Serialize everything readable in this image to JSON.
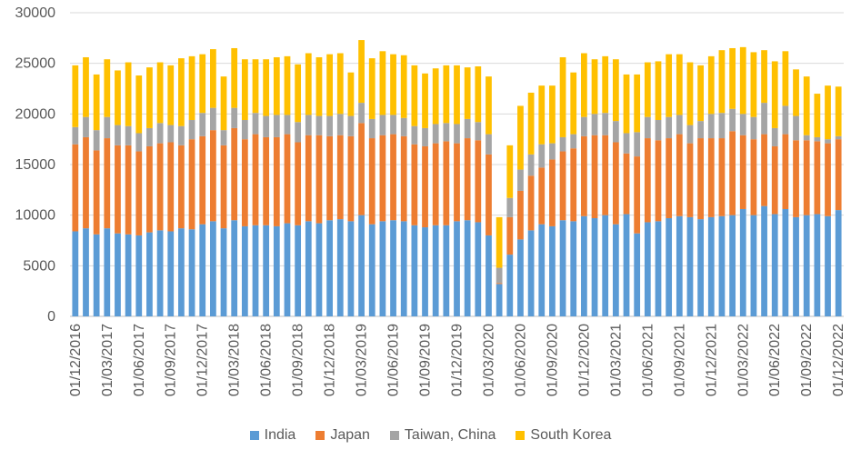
{
  "chart_data": {
    "type": "bar",
    "stacked": true,
    "title": "",
    "xlabel": "",
    "ylabel": "",
    "ylim": [
      0,
      30000
    ],
    "yticks": [
      0,
      5000,
      10000,
      15000,
      20000,
      25000,
      30000
    ],
    "grid": true,
    "legend_position": "bottom",
    "categories": [
      "01/12/2016",
      "01/01/2017",
      "01/02/2017",
      "01/03/2017",
      "01/04/2017",
      "01/05/2017",
      "01/06/2017",
      "01/07/2017",
      "01/08/2017",
      "01/09/2017",
      "01/10/2017",
      "01/11/2017",
      "01/12/2017",
      "01/01/2018",
      "01/02/2018",
      "01/03/2018",
      "01/04/2018",
      "01/05/2018",
      "01/06/2018",
      "01/07/2018",
      "01/08/2018",
      "01/09/2018",
      "01/10/2018",
      "01/11/2018",
      "01/12/2018",
      "01/01/2019",
      "01/02/2019",
      "01/03/2019",
      "01/04/2019",
      "01/05/2019",
      "01/06/2019",
      "01/07/2019",
      "01/08/2019",
      "01/09/2019",
      "01/10/2019",
      "01/11/2019",
      "01/12/2019",
      "01/01/2020",
      "01/02/2020",
      "01/03/2020",
      "01/04/2020",
      "01/05/2020",
      "01/06/2020",
      "01/07/2020",
      "01/08/2020",
      "01/09/2020",
      "01/10/2020",
      "01/11/2020",
      "01/12/2020",
      "01/01/2021",
      "01/02/2021",
      "01/03/2021",
      "01/04/2021",
      "01/05/2021",
      "01/06/2021",
      "01/07/2021",
      "01/08/2021",
      "01/09/2021",
      "01/10/2021",
      "01/11/2021",
      "01/12/2021",
      "01/01/2022",
      "01/02/2022",
      "01/03/2022",
      "01/04/2022",
      "01/05/2022",
      "01/06/2022",
      "01/07/2022",
      "01/08/2022",
      "01/09/2022",
      "01/10/2022",
      "01/11/2022",
      "01/12/2022"
    ],
    "tick_labels": [
      "01/12/2016",
      "01/03/2017",
      "01/06/2017",
      "01/09/2017",
      "01/12/2017",
      "01/03/2018",
      "01/06/2018",
      "01/09/2018",
      "01/12/2018",
      "01/03/2019",
      "01/06/2019",
      "01/09/2019",
      "01/12/2019",
      "01/03/2020",
      "01/06/2020",
      "01/09/2020",
      "01/12/2020",
      "01/03/2021",
      "01/06/2021",
      "01/09/2021",
      "01/12/2021",
      "01/03/2022",
      "01/06/2022",
      "01/09/2022",
      "01/12/2022"
    ],
    "series": [
      {
        "name": "India",
        "color": "#5B9BD5",
        "values": [
          8400,
          8700,
          8100,
          8700,
          8200,
          8100,
          8000,
          8300,
          8500,
          8400,
          8700,
          8600,
          9100,
          9400,
          8700,
          9500,
          8900,
          9000,
          9000,
          8900,
          9200,
          9000,
          9400,
          9200,
          9500,
          9600,
          9400,
          10000,
          9100,
          9400,
          9500,
          9400,
          9000,
          8800,
          9000,
          9000,
          9400,
          9500,
          9300,
          8000,
          3200,
          6100,
          7600,
          8500,
          9100,
          8900,
          9500,
          9400,
          9900,
          9700,
          10000,
          9100,
          10100,
          8200,
          9300,
          9400,
          9700,
          9900,
          9800,
          9600,
          9800,
          9900,
          10000,
          10600,
          10000,
          10900,
          10100,
          10600,
          9800,
          10000,
          10100,
          9900,
          10500
        ]
      },
      {
        "name": "Japan",
        "color": "#ED7D31",
        "values": [
          8600,
          9000,
          8300,
          8900,
          8700,
          8800,
          8300,
          8500,
          8600,
          8800,
          8200,
          8900,
          8700,
          9000,
          8200,
          9100,
          8600,
          9000,
          8700,
          8800,
          8800,
          8200,
          8500,
          8700,
          8300,
          8300,
          8400,
          9100,
          8500,
          8500,
          8500,
          8400,
          8000,
          8000,
          8100,
          8300,
          7700,
          8100,
          8100,
          8000,
          100,
          3700,
          4800,
          5400,
          5600,
          6600,
          6800,
          7200,
          7900,
          8200,
          7900,
          8100,
          6000,
          7600,
          8300,
          8000,
          7900,
          8100,
          7300,
          8000,
          7800,
          7700,
          8300,
          7300,
          7500,
          7100,
          6700,
          7400,
          7600,
          7400,
          7200,
          7200,
          7000
        ]
      },
      {
        "name": "Taiwan, China",
        "color": "#A5A5A5",
        "values": [
          1700,
          2000,
          2000,
          2100,
          2000,
          1900,
          1800,
          1800,
          2000,
          1700,
          1900,
          1900,
          2300,
          2200,
          1500,
          2000,
          1900,
          2100,
          2100,
          2200,
          1900,
          2000,
          2000,
          1900,
          2000,
          2100,
          2000,
          2000,
          1900,
          2000,
          1900,
          1800,
          1800,
          1800,
          1900,
          1800,
          1900,
          1900,
          1800,
          2000,
          1500,
          1900,
          2100,
          2100,
          2300,
          1600,
          1400,
          1400,
          1900,
          2100,
          2200,
          2100,
          2000,
          2400,
          2100,
          2000,
          2100,
          1900,
          1800,
          1700,
          2400,
          2500,
          2200,
          2100,
          2200,
          3100,
          1800,
          2800,
          2400,
          500,
          400,
          400,
          300
        ]
      },
      {
        "name": "South Korea",
        "color": "#FFC000",
        "values": [
          6100,
          5900,
          5500,
          5700,
          5400,
          6300,
          5700,
          6000,
          6000,
          5900,
          6700,
          6300,
          5800,
          5800,
          5300,
          5900,
          6000,
          5300,
          5600,
          5700,
          5800,
          5700,
          6100,
          5800,
          6100,
          6000,
          4300,
          6200,
          6000,
          6300,
          6000,
          6200,
          6000,
          5400,
          5500,
          5700,
          5800,
          5100,
          5500,
          5700,
          5000,
          5200,
          6300,
          6100,
          5800,
          5700,
          7900,
          6100,
          6300,
          5400,
          5600,
          6100,
          5800,
          5700,
          5400,
          5800,
          6200,
          6000,
          6200,
          5500,
          5700,
          6200,
          6000,
          6600,
          6400,
          5200,
          6600,
          5400,
          4600,
          5800,
          4300,
          5300,
          4900
        ]
      }
    ]
  }
}
